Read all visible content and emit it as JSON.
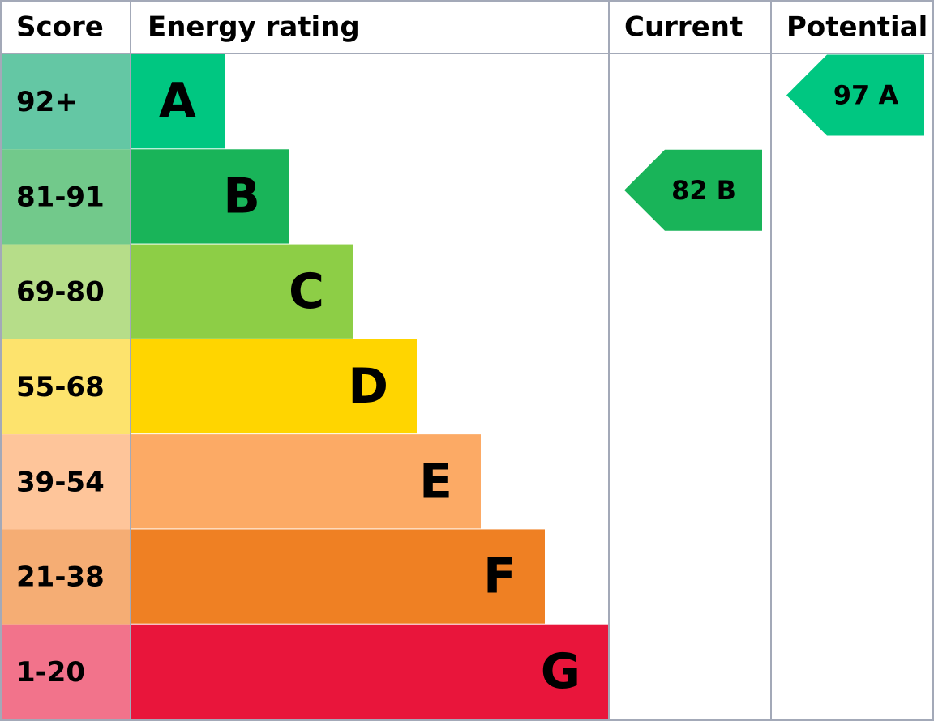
{
  "header": {
    "score": "Score",
    "rating": "Energy rating",
    "current": "Current",
    "potential": "Potential"
  },
  "rows": [
    {
      "score": "92+",
      "rating": "A",
      "score_color": "#64c7a4",
      "color": "#00c781"
    },
    {
      "score": "81-91",
      "rating": "B",
      "score_color": "#72c98b",
      "color": "#19b459"
    },
    {
      "score": "69-80",
      "rating": "C",
      "score_color": "#b6dd89",
      "color": "#8dce46"
    },
    {
      "score": "55-68",
      "rating": "D",
      "score_color": "#fde36d",
      "color": "#ffd500"
    },
    {
      "score": "39-54",
      "rating": "E",
      "score_color": "#fec59a",
      "color": "#fcaa65"
    },
    {
      "score": "21-38",
      "rating": "F",
      "score_color": "#f5ad74",
      "color": "#ef8023"
    },
    {
      "score": "1-20",
      "rating": "G",
      "score_color": "#f2738b",
      "color": "#e9153b"
    }
  ],
  "current": {
    "score": 82,
    "rating": "B"
  },
  "potential": {
    "score": 97,
    "rating": "A"
  }
}
